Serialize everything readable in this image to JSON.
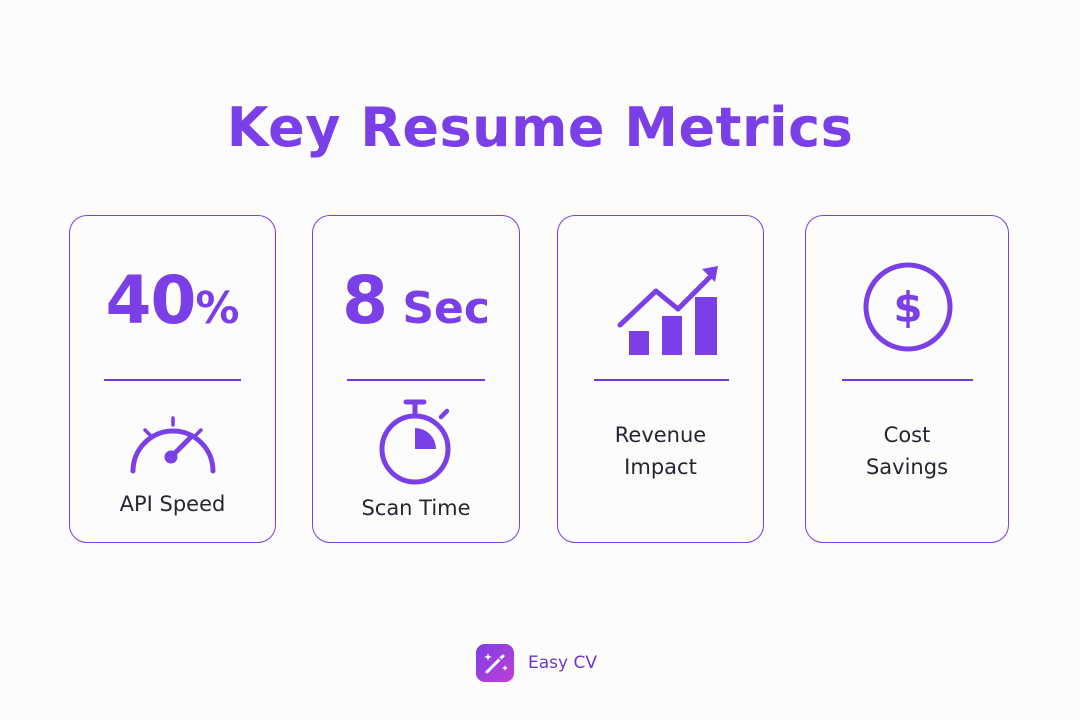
{
  "title": "Key Resume Metrics",
  "colors": {
    "accent": "#7a3fe6",
    "text": "#262633",
    "background": "#fcfcfd"
  },
  "cards": [
    {
      "metric_value": "40",
      "metric_unit": "%",
      "icon": "speedometer-icon",
      "label": "API Speed"
    },
    {
      "metric_value": "8",
      "metric_unit": "Sec",
      "icon": "stopwatch-icon",
      "label": "Scan Time"
    },
    {
      "icon": "growth-chart-icon",
      "label_line1": "Revenue",
      "label_line2": "Impact"
    },
    {
      "icon": "dollar-coin-icon",
      "label_line1": "Cost",
      "label_line2": "Savings"
    }
  ],
  "brand": {
    "icon": "magic-wand-icon",
    "name": "Easy CV"
  }
}
